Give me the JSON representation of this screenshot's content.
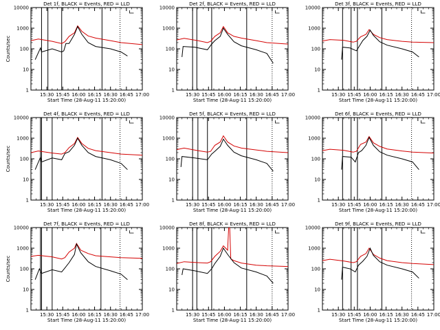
{
  "chart_data": [
    {
      "type": "line",
      "title": "Det 1f, BLACK = Events, RED = LLD",
      "xlabel": "Start Time (28-Aug-11 15:20:00)",
      "ylabel": "Counts/sec",
      "yscale": "log",
      "ylim": [
        1,
        10000
      ],
      "xlim": [
        "15:15",
        "17:00"
      ],
      "x_ticks": [
        "15:30",
        "15:45",
        "16:00",
        "16:15",
        "16:30",
        "16:45",
        "17:00"
      ],
      "y_ticks": [
        "1",
        "10",
        "100",
        "1000",
        "10000"
      ],
      "series": [
        {
          "name": "BLACK",
          "color": "#000000",
          "x": [
            "15:19",
            "15:24",
            "15:25",
            "15:35",
            "15:44",
            "15:46",
            "15:48",
            "15:51",
            "15:56",
            "15:59",
            "16:03",
            "16:09",
            "16:16",
            "16:30",
            "16:40",
            "16:46"
          ],
          "y": [
            30,
            110,
            70,
            100,
            70,
            80,
            180,
            180,
            500,
            1200,
            500,
            200,
            130,
            100,
            70,
            45
          ]
        },
        {
          "name": "RED",
          "color": "#d40000",
          "x": [
            "15:15",
            "15:22",
            "15:35",
            "15:44",
            "15:47",
            "15:51",
            "15:56",
            "15:59",
            "16:03",
            "16:09",
            "16:16",
            "16:30",
            "16:40",
            "17:00"
          ],
          "y": [
            250,
            300,
            230,
            180,
            220,
            400,
            600,
            1300,
            700,
            420,
            330,
            250,
            200,
            160
          ]
        }
      ],
      "vlines_solid": [
        "15:25",
        "15:31",
        "15:44",
        "16:22"
      ],
      "vlines_dotted": [
        "16:39"
      ],
      "marker_x": "16:48"
    },
    {
      "type": "line",
      "title": "Det 2f, BLACK = Events, RED = LLD",
      "xlabel": "Start Time (28-Aug-11 15:20:00)",
      "ylabel": "",
      "yscale": "log",
      "ylim": [
        1,
        10000
      ],
      "xlim": [
        "15:15",
        "17:00"
      ],
      "x_ticks": [
        "15:30",
        "15:45",
        "16:00",
        "16:15",
        "16:30",
        "16:45",
        "17:00"
      ],
      "y_ticks": [
        "1",
        "10",
        "100",
        "1000",
        "10000"
      ],
      "series": [
        {
          "name": "BLACK",
          "color": "#000000",
          "x": [
            "15:20",
            "15:21",
            "15:32",
            "15:44",
            "15:48",
            "15:51",
            "15:56",
            "15:59",
            "16:03",
            "16:09",
            "16:16",
            "16:30",
            "16:40",
            "16:46"
          ],
          "y": [
            40,
            130,
            120,
            90,
            170,
            250,
            400,
            1000,
            500,
            220,
            140,
            90,
            60,
            20
          ]
        },
        {
          "name": "RED",
          "color": "#d40000",
          "x": [
            "15:15",
            "15:22",
            "15:35",
            "15:44",
            "15:47",
            "15:51",
            "15:56",
            "15:59",
            "16:03",
            "16:09",
            "16:16",
            "16:30",
            "16:40",
            "17:00"
          ],
          "y": [
            270,
            320,
            250,
            200,
            230,
            400,
            600,
            1200,
            600,
            400,
            330,
            250,
            200,
            170
          ]
        }
      ],
      "vlines_solid": [
        "15:30",
        "15:34",
        "15:48",
        "16:21"
      ],
      "vlines_dotted": [
        "16:45"
      ],
      "marker_x": "16:48"
    },
    {
      "type": "line",
      "title": "Det 3f, BLACK = Events, RED = LLD",
      "xlabel": "Start Time (28-Aug-11 15:20:00)",
      "ylabel": "",
      "yscale": "log",
      "ylim": [
        1,
        10000
      ],
      "xlim": [
        "15:15",
        "17:00"
      ],
      "x_ticks": [
        "15:30",
        "15:45",
        "16:00",
        "16:15",
        "16:30",
        "16:45",
        "17:00"
      ],
      "y_ticks": [
        "1",
        "10",
        "100",
        "1000",
        "10000"
      ],
      "series": [
        {
          "name": "BLACK",
          "color": "#000000",
          "x": [
            "15:33",
            "15:34",
            "15:41",
            "15:47",
            "15:50",
            "15:53",
            "15:57",
            "16:00",
            "16:03",
            "16:09",
            "16:16",
            "16:30",
            "16:40",
            "16:46"
          ],
          "y": [
            30,
            120,
            110,
            80,
            140,
            250,
            400,
            800,
            450,
            220,
            150,
            100,
            70,
            40
          ]
        },
        {
          "name": "RED",
          "color": "#d40000",
          "x": [
            "15:15",
            "15:22",
            "15:35",
            "15:44",
            "15:47",
            "15:51",
            "15:56",
            "15:59",
            "16:03",
            "16:09",
            "16:16",
            "16:30",
            "16:40",
            "17:00"
          ],
          "y": [
            240,
            280,
            260,
            210,
            230,
            380,
            500,
            850,
            500,
            350,
            280,
            230,
            210,
            200
          ]
        }
      ],
      "vlines_solid": [
        "15:34",
        "15:42",
        "15:48",
        "16:11"
      ],
      "vlines_dotted": [
        "16:39"
      ],
      "marker_x": "16:48"
    },
    {
      "type": "line",
      "title": "Det 4f, BLACK = Events, RED = LLD",
      "xlabel": "Start Time (28-Aug-11 15:20:00)",
      "ylabel": "Counts/sec",
      "yscale": "log",
      "ylim": [
        1,
        10000
      ],
      "xlim": [
        "15:15",
        "17:00"
      ],
      "x_ticks": [
        "15:30",
        "15:45",
        "16:00",
        "16:15",
        "16:30",
        "16:45",
        "17:00"
      ],
      "y_ticks": [
        "1",
        "10",
        "100",
        "1000",
        "10000"
      ],
      "series": [
        {
          "name": "BLACK",
          "color": "#000000",
          "x": [
            "15:19",
            "15:24",
            "15:25",
            "15:35",
            "15:44",
            "15:47",
            "15:51",
            "15:56",
            "15:59",
            "16:03",
            "16:09",
            "16:16",
            "16:30",
            "16:40",
            "16:46"
          ],
          "y": [
            30,
            120,
            70,
            110,
            90,
            180,
            220,
            450,
            1000,
            450,
            200,
            130,
            90,
            60,
            30
          ]
        },
        {
          "name": "RED",
          "color": "#d40000",
          "x": [
            "15:15",
            "15:22",
            "15:35",
            "15:44",
            "15:47",
            "15:51",
            "15:56",
            "15:59",
            "16:03",
            "16:09",
            "16:16",
            "16:30",
            "16:40",
            "17:00"
          ],
          "y": [
            200,
            240,
            190,
            170,
            200,
            350,
            550,
            1100,
            550,
            320,
            250,
            200,
            170,
            150
          ]
        }
      ],
      "vlines_solid": [
        "15:24",
        "15:25",
        "15:35",
        "16:22"
      ],
      "vlines_dotted": [
        "16:39"
      ],
      "marker_x": "16:48"
    },
    {
      "type": "line",
      "title": "Det 5f, BLACK = Events, RED = LLD",
      "xlabel": "Start Time (28-Aug-11 15:20:00)",
      "ylabel": "",
      "yscale": "log",
      "ylim": [
        1,
        10000
      ],
      "xlim": [
        "15:15",
        "17:00"
      ],
      "x_ticks": [
        "15:30",
        "15:45",
        "16:00",
        "16:15",
        "16:30",
        "16:45",
        "17:00"
      ],
      "y_ticks": [
        "1",
        "10",
        "100",
        "1000",
        "10000"
      ],
      "series": [
        {
          "name": "BLACK",
          "color": "#000000",
          "x": [
            "15:19",
            "15:20",
            "15:32",
            "15:44",
            "15:48",
            "15:51",
            "15:56",
            "15:59",
            "16:03",
            "16:09",
            "16:16",
            "16:30",
            "16:40",
            "16:46"
          ],
          "y": [
            40,
            130,
            110,
            90,
            170,
            230,
            400,
            900,
            450,
            210,
            140,
            90,
            60,
            25
          ]
        },
        {
          "name": "RED",
          "color": "#d40000",
          "x": [
            "15:15",
            "15:22",
            "15:35",
            "15:44",
            "15:47",
            "15:51",
            "15:56",
            "15:59",
            "16:03",
            "16:09",
            "16:16",
            "16:30",
            "16:40",
            "17:00"
          ],
          "y": [
            280,
            330,
            250,
            210,
            230,
            450,
            650,
            1300,
            650,
            420,
            330,
            270,
            230,
            200
          ]
        }
      ],
      "vlines_solid": [
        "15:30",
        "15:35",
        "15:44",
        "16:21"
      ],
      "vlines_dotted": [
        "16:45"
      ],
      "marker_x": "16:48"
    },
    {
      "type": "line",
      "title": "Det 6f, BLACK = Events, RED = LLD",
      "xlabel": "Start Time (28-Aug-11 15:20:00)",
      "ylabel": "",
      "yscale": "log",
      "ylim": [
        1,
        10000
      ],
      "xlim": [
        "15:15",
        "17:00"
      ],
      "x_ticks": [
        "15:30",
        "15:45",
        "16:00",
        "16:15",
        "16:30",
        "16:45",
        "17:00"
      ],
      "y_ticks": [
        "1",
        "10",
        "100",
        "1000",
        "10000"
      ],
      "series": [
        {
          "name": "BLACK",
          "color": "#000000",
          "x": [
            "15:33",
            "15:34",
            "15:42",
            "15:46",
            "15:49",
            "15:52",
            "15:56",
            "15:59",
            "16:03",
            "16:09",
            "16:16",
            "16:30",
            "16:40",
            "16:46"
          ],
          "y": [
            30,
            130,
            120,
            70,
            200,
            250,
            450,
            1100,
            450,
            220,
            150,
            100,
            70,
            30
          ]
        },
        {
          "name": "RED",
          "color": "#d40000",
          "x": [
            "15:15",
            "15:22",
            "15:35",
            "15:44",
            "15:47",
            "15:51",
            "15:56",
            "15:59",
            "16:03",
            "16:09",
            "16:16",
            "16:30",
            "16:40",
            "17:00"
          ],
          "y": [
            250,
            290,
            260,
            210,
            230,
            500,
            650,
            1200,
            600,
            400,
            300,
            240,
            210,
            190
          ]
        }
      ],
      "vlines_solid": [
        "15:34",
        "15:42",
        "15:48",
        "16:11"
      ],
      "vlines_dotted": [
        "16:39"
      ],
      "marker_x": "16:48"
    },
    {
      "type": "line",
      "title": "Det 7f, BLACK = Events, RED = LLD",
      "xlabel": "Start Time (28-Aug-11 15:20:00)",
      "ylabel": "Counts/sec",
      "yscale": "log",
      "ylim": [
        1,
        10000
      ],
      "xlim": [
        "15:15",
        "17:00"
      ],
      "x_ticks": [
        "15:30",
        "15:45",
        "16:00",
        "16:15",
        "16:30",
        "16:45",
        "17:00"
      ],
      "y_ticks": [
        "1",
        "10",
        "100",
        "1000",
        "10000"
      ],
      "series": [
        {
          "name": "BLACK",
          "color": "#000000",
          "x": [
            "15:19",
            "15:23",
            "15:25",
            "15:35",
            "15:44",
            "15:47",
            "15:51",
            "15:56",
            "15:58",
            "16:02",
            "16:09",
            "16:16",
            "16:30",
            "16:40",
            "16:46"
          ],
          "y": [
            30,
            100,
            60,
            90,
            70,
            110,
            200,
            500,
            1600,
            600,
            220,
            130,
            80,
            55,
            30
          ]
        },
        {
          "name": "RED",
          "color": "#d40000",
          "x": [
            "15:15",
            "15:22",
            "15:35",
            "15:44",
            "15:47",
            "15:51",
            "15:56",
            "15:58",
            "16:02",
            "16:09",
            "16:16",
            "16:30",
            "16:40",
            "17:00"
          ],
          "y": [
            400,
            450,
            380,
            300,
            350,
            650,
            1000,
            1700,
            800,
            550,
            430,
            380,
            350,
            320
          ]
        }
      ],
      "vlines_solid": [
        "15:24",
        "15:25",
        "15:35",
        "16:21"
      ],
      "vlines_dotted": [
        "16:39"
      ],
      "marker_x": "16:48"
    },
    {
      "type": "line",
      "title": "Det 8f, BLACK = Events, RED = LLD",
      "xlabel": "Start Time (28-Aug-11 15:20:00)",
      "ylabel": "",
      "yscale": "log",
      "ylim": [
        1,
        10000
      ],
      "xlim": [
        "15:15",
        "17:00"
      ],
      "x_ticks": [
        "15:30",
        "15:45",
        "16:00",
        "16:15",
        "16:30",
        "16:45",
        "17:00"
      ],
      "y_ticks": [
        "1",
        "10",
        "100",
        "1000",
        "10000"
      ],
      "series": [
        {
          "name": "BLACK",
          "color": "#000000",
          "x": [
            "15:20",
            "15:21",
            "15:32",
            "15:44",
            "15:48",
            "15:51",
            "15:56",
            "15:59",
            "16:03",
            "16:09",
            "16:16",
            "16:30",
            "16:40",
            "16:46"
          ],
          "y": [
            50,
            100,
            80,
            60,
            100,
            180,
            400,
            1000,
            500,
            200,
            110,
            70,
            45,
            20
          ]
        },
        {
          "name": "RED",
          "color": "#d40000",
          "x": [
            "15:15",
            "15:22",
            "15:35",
            "15:44",
            "15:47",
            "15:51",
            "15:56",
            "15:59",
            "16:03",
            "16:04",
            "16:05",
            "16:06",
            "16:09",
            "16:16",
            "16:30",
            "16:40",
            "17:00"
          ],
          "y": [
            180,
            220,
            200,
            190,
            220,
            400,
            700,
            1300,
            800,
            10000,
            10000,
            300,
            250,
            190,
            150,
            140,
            130
          ]
        }
      ],
      "vlines_solid": [
        "15:30",
        "15:34",
        "15:48",
        "16:21"
      ],
      "vlines_dotted": [
        "16:45"
      ],
      "marker_x": "16:48"
    },
    {
      "type": "line",
      "title": "Det 9f, BLACK = Events, RED = LLD",
      "xlabel": "Start Time (28-Aug-11 15:20:00)",
      "ylabel": "",
      "yscale": "log",
      "ylim": [
        1,
        10000
      ],
      "xlim": [
        "15:15",
        "17:00"
      ],
      "x_ticks": [
        "15:30",
        "15:45",
        "16:00",
        "16:15",
        "16:30",
        "16:45",
        "17:00"
      ],
      "y_ticks": [
        "1",
        "10",
        "100",
        "1000",
        "10000"
      ],
      "series": [
        {
          "name": "BLACK",
          "color": "#000000",
          "x": [
            "15:33",
            "15:34",
            "15:41",
            "15:46",
            "15:49",
            "15:53",
            "15:57",
            "16:00",
            "16:03",
            "16:09",
            "16:16",
            "16:30",
            "16:40",
            "16:46"
          ],
          "y": [
            30,
            120,
            100,
            70,
            150,
            230,
            400,
            1000,
            450,
            220,
            150,
            100,
            70,
            35
          ]
        },
        {
          "name": "RED",
          "color": "#d40000",
          "x": [
            "15:15",
            "15:22",
            "15:35",
            "15:44",
            "15:47",
            "15:51",
            "15:56",
            "15:59",
            "16:03",
            "16:09",
            "16:16",
            "16:30",
            "16:40",
            "17:00"
          ],
          "y": [
            250,
            290,
            240,
            200,
            220,
            400,
            550,
            1000,
            500,
            330,
            250,
            200,
            180,
            160
          ]
        }
      ],
      "vlines_solid": [
        "15:34",
        "15:42",
        "15:48",
        "16:11"
      ],
      "vlines_dotted": [
        "16:39"
      ],
      "marker_x": "16:48"
    }
  ]
}
